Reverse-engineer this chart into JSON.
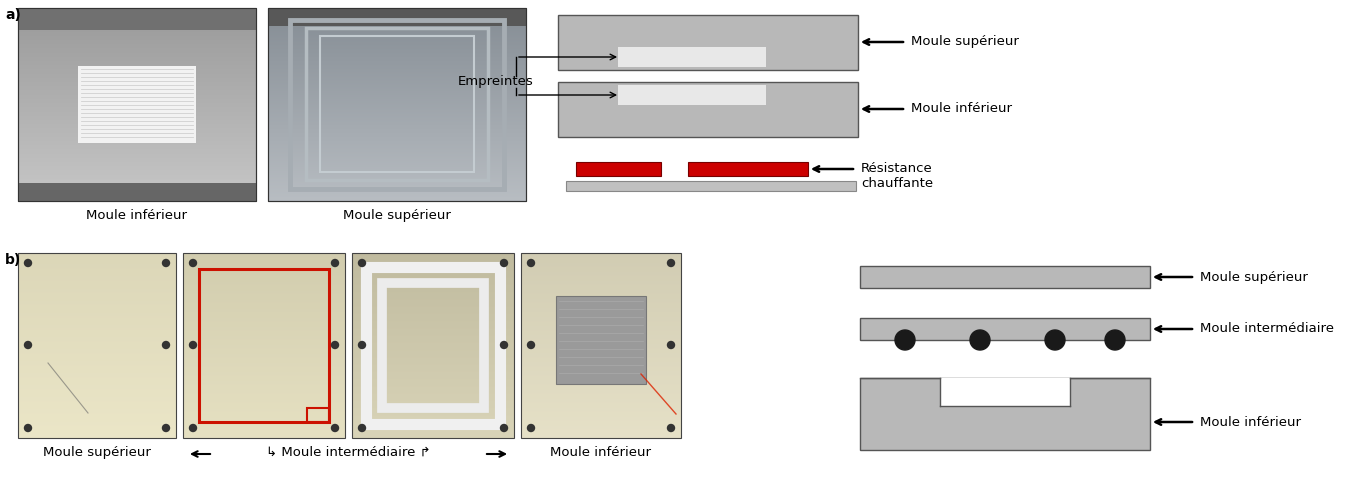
{
  "fig_width": 13.72,
  "fig_height": 4.95,
  "dpi": 100,
  "bg_color": "#ffffff",
  "label_a": "a)",
  "label_b": "b)",
  "diagram_gray": "#b8b8b8",
  "diagram_light_inner": "#e8e8e8",
  "red_color": "#cc0000",
  "text_color": "#000000",
  "label_moule_inf_a": "Moule inférieur",
  "label_moule_sup_a": "Moule supérieur",
  "label_empreintes": "Empreintes",
  "label_moule_sup_diag_a": "Moule supérieur",
  "label_moule_inf_diag_a": "Moule inférieur",
  "label_resistance": "Résistance\nchauffante",
  "label_moule_sup_b": "Moule supérieur",
  "label_moule_inter_b": "Moule intermédiaire",
  "label_moule_inf_b_diag": "Moule inférieur",
  "label_moule_sup_photo_b": "Moule supérieur",
  "label_moule_inter_photo_b": "↳ Moule intermédiaire ↱",
  "label_moule_inf_photo_b": "Moule inférieur",
  "font_size_caption": 9.5,
  "font_size_ab": 10
}
